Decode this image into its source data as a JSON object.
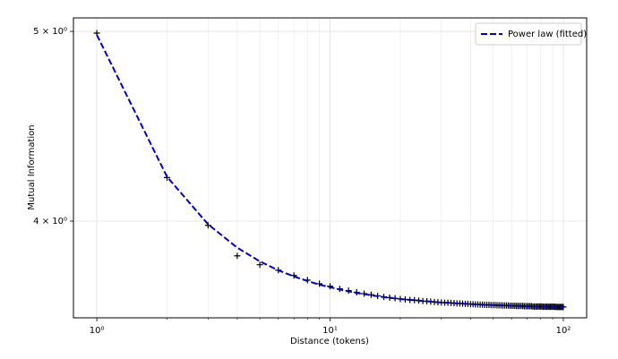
{
  "chart_data": {
    "type": "line",
    "xlabel": "Distance (tokens)",
    "ylabel": "Mutual Information",
    "xscale": "log",
    "yscale": "log",
    "grid": true,
    "legend": "upper right",
    "xlim": [
      0.794,
      125.9
    ],
    "ylim": [
      3.57,
      5.08
    ],
    "xticks": [
      {
        "value": 1,
        "label": "10⁰"
      },
      {
        "value": 10,
        "label": "10¹"
      },
      {
        "value": 100,
        "label": "10²"
      }
    ],
    "xminorticks": [
      2,
      3,
      4,
      5,
      6,
      7,
      8,
      9,
      20,
      30,
      40,
      50,
      60,
      70,
      80,
      90
    ],
    "yticks": [
      {
        "value": 4,
        "label": "4 × 10⁰"
      },
      {
        "value": 5,
        "label": "5 × 10⁰"
      }
    ],
    "x": [
      1,
      2,
      3,
      4,
      5,
      6,
      7,
      8,
      9,
      10,
      11,
      12,
      13,
      14,
      15,
      16,
      17,
      18,
      19,
      20,
      21,
      22,
      23,
      24,
      25,
      26,
      27,
      28,
      29,
      30,
      31,
      32,
      33,
      34,
      35,
      36,
      37,
      38,
      39,
      40,
      41,
      42,
      43,
      44,
      45,
      46,
      47,
      48,
      49,
      50,
      51,
      52,
      53,
      54,
      55,
      56,
      57,
      58,
      59,
      60,
      61,
      62,
      63,
      64,
      65,
      66,
      67,
      68,
      69,
      70,
      71,
      72,
      73,
      74,
      75,
      76,
      77,
      78,
      79,
      80,
      81,
      82,
      83,
      84,
      85,
      86,
      87,
      88,
      89,
      90,
      91,
      92,
      93,
      94,
      95,
      96,
      97,
      98,
      99,
      100
    ],
    "series": [
      {
        "marker": "+",
        "color": "#000000",
        "values": [
          4.99,
          4.21,
          3.98,
          3.84,
          3.8,
          3.776,
          3.752,
          3.732,
          3.716,
          3.705,
          3.694,
          3.686,
          3.679,
          3.673,
          3.668,
          3.663,
          3.659,
          3.656,
          3.653,
          3.65,
          3.648,
          3.646,
          3.645,
          3.643,
          3.641,
          3.64,
          3.639,
          3.637,
          3.636,
          3.635,
          3.634,
          3.634,
          3.633,
          3.632,
          3.631,
          3.631,
          3.63,
          3.629,
          3.629,
          3.628,
          3.628,
          3.627,
          3.627,
          3.626,
          3.626,
          3.625,
          3.625,
          3.625,
          3.624,
          3.624,
          3.624,
          3.623,
          3.623,
          3.623,
          3.622,
          3.622,
          3.622,
          3.622,
          3.621,
          3.621,
          3.621,
          3.621,
          3.62,
          3.62,
          3.62,
          3.62,
          3.62,
          3.619,
          3.619,
          3.619,
          3.619,
          3.619,
          3.619,
          3.618,
          3.618,
          3.618,
          3.618,
          3.618,
          3.618,
          3.618,
          3.618,
          3.617,
          3.617,
          3.617,
          3.617,
          3.617,
          3.617,
          3.617,
          3.617,
          3.617,
          3.617,
          3.617,
          3.616,
          3.616,
          3.616,
          3.616,
          3.616,
          3.616,
          3.616,
          3.616
        ]
      },
      {
        "name": "Power law (fitted)",
        "color": "#0000cc",
        "dash": true,
        "values": [
          4.98,
          4.214,
          3.985,
          3.877,
          3.815,
          3.775,
          3.748,
          3.728,
          3.712,
          3.701,
          3.691,
          3.683,
          3.676,
          3.671,
          3.666,
          3.662,
          3.658,
          3.655,
          3.652,
          3.65,
          3.648,
          3.646,
          3.645,
          3.643,
          3.641,
          3.64,
          3.639,
          3.637,
          3.636,
          3.635,
          3.634,
          3.634,
          3.633,
          3.632,
          3.631,
          3.631,
          3.63,
          3.629,
          3.629,
          3.628,
          3.628,
          3.627,
          3.627,
          3.626,
          3.626,
          3.625,
          3.625,
          3.625,
          3.624,
          3.624,
          3.624,
          3.623,
          3.623,
          3.623,
          3.622,
          3.622,
          3.622,
          3.622,
          3.621,
          3.621,
          3.621,
          3.621,
          3.62,
          3.62,
          3.62,
          3.62,
          3.62,
          3.619,
          3.619,
          3.619,
          3.619,
          3.619,
          3.619,
          3.618,
          3.618,
          3.618,
          3.618,
          3.618,
          3.618,
          3.618,
          3.618,
          3.617,
          3.617,
          3.617,
          3.617,
          3.617,
          3.617,
          3.617,
          3.617,
          3.617,
          3.617,
          3.617,
          3.616,
          3.616,
          3.616,
          3.616,
          3.616,
          3.616,
          3.616,
          3.616
        ]
      }
    ]
  }
}
